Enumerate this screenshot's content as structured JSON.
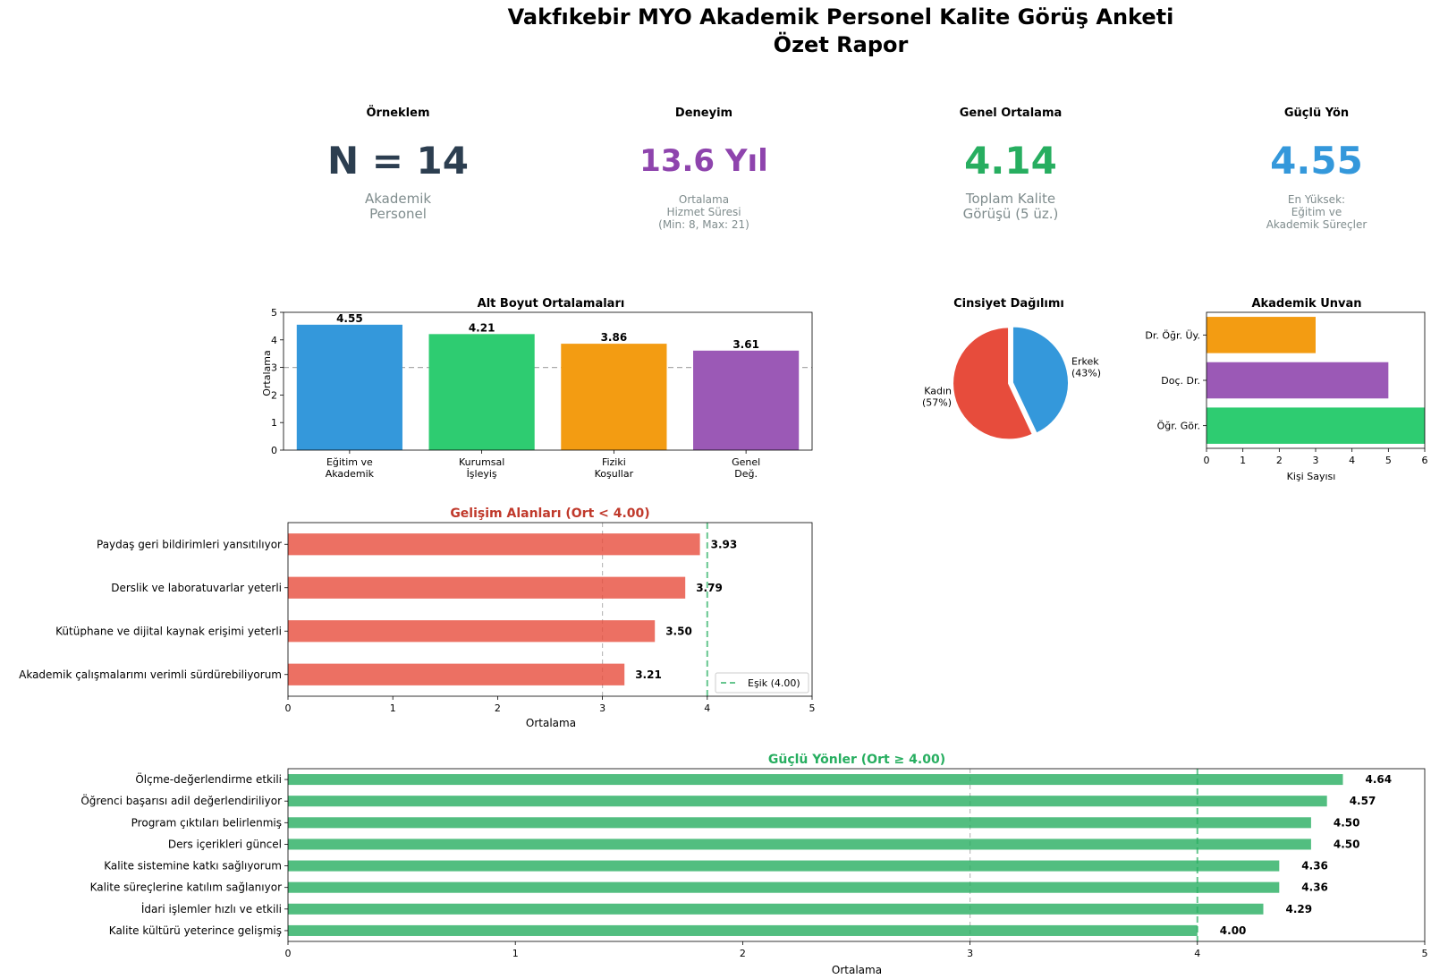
{
  "report": {
    "title_line1": "Vakfıkebir MYO Akademik Personel Kalite Görüş Anketi",
    "title_line2": "Özet Rapor"
  },
  "kpis": [
    {
      "label": "Örneklem",
      "value": "N = 14",
      "sub": [
        "Akademik",
        "Personel"
      ],
      "color": "#2c3e50"
    },
    {
      "label": "Deneyim",
      "value": "13.6 Yıl",
      "sub": [
        "Ortalama",
        "Hizmet Süresi",
        "(Min: 8, Max: 21)"
      ],
      "color": "#8e44ad"
    },
    {
      "label": "Genel Ortalama",
      "value": "4.14",
      "sub": [
        "Toplam Kalite",
        "Görüşü (5 üz.)"
      ],
      "color": "#27ae60"
    },
    {
      "label": "Güçlü Yön",
      "value": "4.55",
      "sub": [
        "En Yüksek:",
        "Eğitim ve",
        "Akademik Süreçler"
      ],
      "color": "#3498db"
    }
  ],
  "chart_data": [
    {
      "id": "subdim",
      "type": "bar",
      "title": "Alt Boyut Ortalamaları",
      "categories": [
        [
          "Eğitim ve",
          "Akademik"
        ],
        [
          "Kurumsal",
          "İşleyiş"
        ],
        [
          "Fiziki",
          "Koşullar"
        ],
        [
          "Genel",
          "Değ."
        ]
      ],
      "values": [
        4.55,
        4.21,
        3.86,
        3.61
      ],
      "value_labels": [
        "4.55",
        "4.21",
        "3.86",
        "3.61"
      ],
      "colors": [
        "#3498db",
        "#2ecc71",
        "#f39c12",
        "#9b59b6"
      ],
      "xlabel": "",
      "ylabel": "Ortalama",
      "ylim": [
        0,
        5
      ],
      "yticks": [
        "0",
        "1",
        "2",
        "3",
        "4",
        "5"
      ],
      "reference_line": 3
    },
    {
      "id": "gender",
      "type": "pie",
      "title": "Cinsiyet Dağılımı",
      "labels": [
        "Erkek\n(43%)",
        "Kadın\n(57%)"
      ],
      "label_lines": [
        [
          "Erkek",
          "(43%)"
        ],
        [
          "Kadın",
          "(57%)"
        ]
      ],
      "values": [
        43,
        57
      ],
      "colors": [
        "#3498db",
        "#e74c3c"
      ]
    },
    {
      "id": "title",
      "type": "bar",
      "orientation": "horizontal",
      "title": "Akademik Unvan",
      "categories": [
        "Dr. Öğr. Üy.",
        "Doç. Dr.",
        "Öğr. Gör."
      ],
      "values": [
        3,
        5,
        6
      ],
      "colors": [
        "#f39c12",
        "#9b59b6",
        "#2ecc71"
      ],
      "xlabel": "Kişi Sayısı",
      "xlim": [
        0,
        6
      ],
      "xticks": [
        "0",
        "1",
        "2",
        "3",
        "4",
        "5",
        "6"
      ]
    },
    {
      "id": "improve",
      "type": "bar",
      "orientation": "horizontal",
      "title": "Gelişim Alanları (Ort < 4.00)",
      "title_color": "#c0392b",
      "categories": [
        "Paydaş geri bildirimleri yansıtılıyor",
        "Derslik ve laboratuvarlar yeterli",
        "Kütüphane ve dijital kaynak erişimi yeterli",
        "Akademik çalışmalarımı verimli sürdürebiliyorum"
      ],
      "values": [
        3.93,
        3.79,
        3.5,
        3.21
      ],
      "value_labels": [
        "3.93",
        "3.79",
        "3.50",
        "3.21"
      ],
      "color": "#e74c3c",
      "xlabel": "Ortalama",
      "xlim": [
        0,
        5
      ],
      "xticks": [
        "0",
        "1",
        "2",
        "3",
        "4",
        "5"
      ],
      "reference_line": 3,
      "threshold": 4,
      "legend": "Eşik (4.00)",
      "legend_position": "lower-right"
    },
    {
      "id": "strong",
      "type": "bar",
      "orientation": "horizontal",
      "title": "Güçlü Yönler (Ort ≥ 4.00)",
      "title_color": "#27ae60",
      "categories": [
        "Ölçme-değerlendirme etkili",
        "Öğrenci başarısı adil değerlendiriliyor",
        "Program çıktıları belirlenmiş",
        "Ders içerikleri güncel",
        "Kalite sistemine katkı sağlıyorum",
        "Kalite süreçlerine katılım sağlanıyor",
        "İdari işlemler hızlı ve etkili",
        "Kalite kültürü yeterince gelişmiş"
      ],
      "values": [
        4.64,
        4.57,
        4.5,
        4.5,
        4.36,
        4.36,
        4.29,
        4.0
      ],
      "value_labels": [
        "4.64",
        "4.57",
        "4.50",
        "4.50",
        "4.36",
        "4.36",
        "4.29",
        "4.00"
      ],
      "color": "#27ae60",
      "xlabel": "Ortalama",
      "xlim": [
        0,
        5
      ],
      "xticks": [
        "0",
        "1",
        "2",
        "3",
        "4",
        "5"
      ],
      "reference_line": 3,
      "threshold": 4
    }
  ]
}
